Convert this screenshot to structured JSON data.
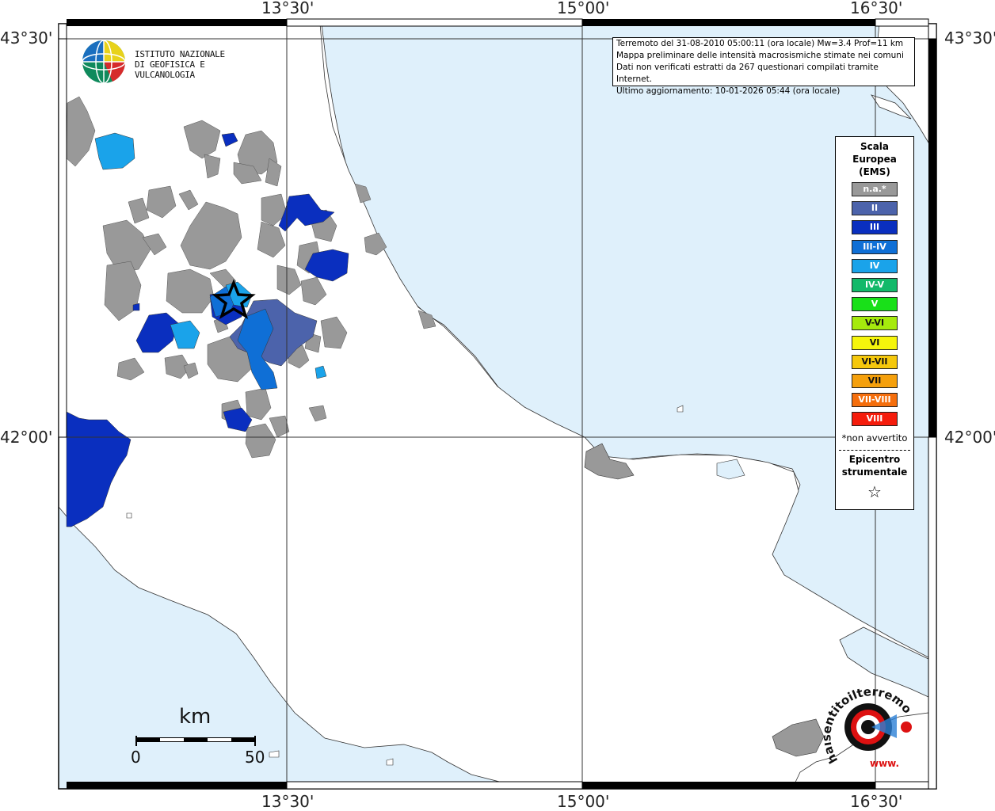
{
  "frame": {
    "top_ticks": [
      "13°30'",
      "15°00'",
      "16°30'"
    ],
    "bottom_ticks": [
      "13°30'",
      "15°00'",
      "16°30'"
    ],
    "left_ticks": [
      "43°30'",
      "42°00'"
    ],
    "right_ticks": [
      "43°30'",
      "42°00'"
    ]
  },
  "info": {
    "line1": "Terremoto del 31-08-2010 05:00:11 (ora locale) Mw=3.4 Prof=11 km",
    "line2": "Mappa preliminare delle intensità macrosismiche stimate nei comuni",
    "line3": "Dati non verificati estratti da 267 questionari compilati tramite Internet.",
    "line4": "Ultimo aggiornamento: 10-01-2026 05:44 (ora locale)"
  },
  "logo": {
    "line1": "ISTITUTO NAZIONALE",
    "line2": "DI GEOFISICA E VULCANOLOGIA"
  },
  "legend": {
    "title1": "Scala",
    "title2": "Europea",
    "title3": "(EMS)",
    "items": [
      {
        "label": "n.a.*",
        "color": "#999999"
      },
      {
        "label": "II",
        "color": "#4c63ab"
      },
      {
        "label": "III",
        "color": "#0a2fbf"
      },
      {
        "label": "III-IV",
        "color": "#0f6fd6"
      },
      {
        "label": "IV",
        "color": "#1aa3ea"
      },
      {
        "label": "IV-V",
        "color": "#13b96a"
      },
      {
        "label": "V",
        "color": "#19e019"
      },
      {
        "label": "V-VI",
        "color": "#a6ea0d"
      },
      {
        "label": "VI",
        "color": "#f5f50c"
      },
      {
        "label": "VI-VII",
        "color": "#f5c80c"
      },
      {
        "label": "VII",
        "color": "#f5a00c"
      },
      {
        "label": "VII-VIII",
        "color": "#f56e0c"
      },
      {
        "label": "VIII",
        "color": "#f51c0c"
      }
    ],
    "note": "*non avvertito",
    "epicentro1": "Epicentro",
    "epicentro2": "strumentale",
    "star": "☆"
  },
  "scale_bar": {
    "unit": "km",
    "min": "0",
    "max": "50"
  },
  "haisentito": {
    "text": "haisentitoilterremoto.it",
    "www": "www."
  },
  "colors": {
    "sea": "#dff0fb",
    "land": "#ffffff",
    "na": "#999999"
  }
}
